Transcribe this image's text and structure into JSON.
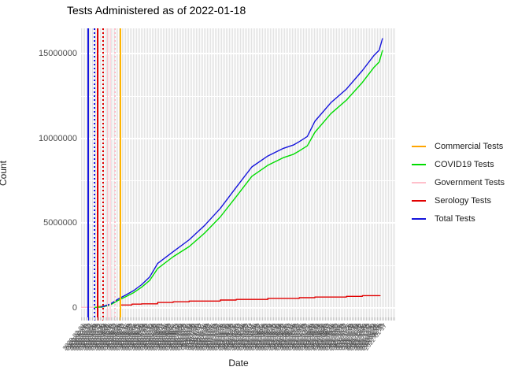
{
  "title": "Tests Administered as of 2022-01-18",
  "y_axis": {
    "label": "Count",
    "ticks": [
      "0",
      "5000000",
      "10000000",
      "15000000"
    ]
  },
  "x_axis": {
    "label": "Date",
    "start": "2020-02-01",
    "end": "2022-01-18",
    "label_every_days": 4,
    "label_format": "YYYY-MM-DD",
    "label_angle_deg": 52
  },
  "legend": {
    "position": "right",
    "items": [
      {
        "label": "Commercial Tests",
        "color": "#FFA500"
      },
      {
        "label": "COVID19 Tests",
        "color": "#00DC00"
      },
      {
        "label": "Government Tests",
        "color": "#FFC0CB"
      },
      {
        "label": "Serology Tests",
        "color": "#E10000"
      },
      {
        "label": "Total Tests",
        "color": "#1414DC"
      }
    ]
  },
  "chart_data": {
    "type": "line",
    "title": "Tests Administered as of 2022-01-18",
    "xlabel": "Date",
    "ylabel": "Count",
    "x_range": [
      "2020-02-01",
      "2022-01-18"
    ],
    "ylim": [
      0,
      16500000
    ],
    "y_major_ticks": [
      0,
      5000000,
      10000000,
      15000000
    ],
    "y_minor_ticks": [
      2500000,
      7500000,
      12500000
    ],
    "grid": "dense daily vertical gridlines, white horizontal gridlines",
    "legend_position": "right",
    "series": [
      {
        "name": "Government Tests",
        "color": "#FFC0CB",
        "points": [
          [
            "2020-02-01",
            10000
          ],
          [
            "2020-03-28",
            20000
          ]
        ]
      },
      {
        "name": "Commercial Tests",
        "color": "#FFA500",
        "points": [
          [
            "2020-03-10",
            50000
          ],
          [
            "2020-03-22",
            80000
          ],
          [
            "2020-04-05",
            130000
          ],
          [
            "2020-04-12",
            150000
          ]
        ]
      },
      {
        "name": "Serology Tests",
        "color": "#E10000",
        "step": true,
        "points": [
          [
            "2020-05-05",
            150000
          ],
          [
            "2020-06-01",
            200000
          ],
          [
            "2020-06-24",
            220000
          ],
          [
            "2020-08-01",
            300000
          ],
          [
            "2020-09-07",
            340000
          ],
          [
            "2020-10-15",
            380000
          ],
          [
            "2020-12-28",
            440000
          ],
          [
            "2021-02-04",
            480000
          ],
          [
            "2021-04-20",
            540000
          ],
          [
            "2021-07-04",
            580000
          ],
          [
            "2021-08-10",
            620000
          ],
          [
            "2021-10-24",
            660000
          ],
          [
            "2021-12-01",
            700000
          ],
          [
            "2022-01-12",
            720000
          ]
        ]
      },
      {
        "name": "COVID19 Tests",
        "color": "#00DC00",
        "points": [
          [
            "2020-03-04",
            10000
          ],
          [
            "2020-03-22",
            30000
          ],
          [
            "2020-04-10",
            150000
          ],
          [
            "2020-04-29",
            420000
          ],
          [
            "2020-05-18",
            650000
          ],
          [
            "2020-06-05",
            880000
          ],
          [
            "2020-06-24",
            1200000
          ],
          [
            "2020-07-13",
            1600000
          ],
          [
            "2020-08-01",
            2300000
          ],
          [
            "2020-09-07",
            3000000
          ],
          [
            "2020-10-15",
            3600000
          ],
          [
            "2020-11-21",
            4400000
          ],
          [
            "2020-12-28",
            5350000
          ],
          [
            "2021-02-04",
            6550000
          ],
          [
            "2021-03-13",
            7750000
          ],
          [
            "2021-04-20",
            8400000
          ],
          [
            "2021-05-27",
            8850000
          ],
          [
            "2021-06-20",
            9050000
          ],
          [
            "2021-07-04",
            9250000
          ],
          [
            "2021-07-23",
            9550000
          ],
          [
            "2021-08-10",
            10350000
          ],
          [
            "2021-09-17",
            11450000
          ],
          [
            "2021-10-24",
            12250000
          ],
          [
            "2021-12-01",
            13300000
          ],
          [
            "2021-12-29",
            14200000
          ],
          [
            "2022-01-10",
            14500000
          ],
          [
            "2022-01-18",
            15200000
          ]
        ]
      },
      {
        "name": "Total Tests",
        "color": "#1414DC",
        "points": [
          [
            "2020-03-18",
            30000
          ],
          [
            "2020-03-22",
            50000
          ],
          [
            "2020-04-10",
            200000
          ],
          [
            "2020-04-29",
            500000
          ],
          [
            "2020-05-18",
            750000
          ],
          [
            "2020-06-05",
            1000000
          ],
          [
            "2020-06-24",
            1350000
          ],
          [
            "2020-07-13",
            1800000
          ],
          [
            "2020-08-01",
            2600000
          ],
          [
            "2020-09-07",
            3300000
          ],
          [
            "2020-10-15",
            4000000
          ],
          [
            "2020-11-21",
            4850000
          ],
          [
            "2020-12-28",
            5850000
          ],
          [
            "2021-02-04",
            7100000
          ],
          [
            "2021-03-13",
            8300000
          ],
          [
            "2021-04-20",
            8950000
          ],
          [
            "2021-05-27",
            9400000
          ],
          [
            "2021-06-20",
            9600000
          ],
          [
            "2021-07-04",
            9800000
          ],
          [
            "2021-07-23",
            10100000
          ],
          [
            "2021-08-10",
            11000000
          ],
          [
            "2021-09-17",
            12100000
          ],
          [
            "2021-10-24",
            12900000
          ],
          [
            "2021-12-01",
            14000000
          ],
          [
            "2021-12-29",
            14900000
          ],
          [
            "2022-01-10",
            15200000
          ],
          [
            "2022-01-18",
            15900000
          ]
        ]
      }
    ],
    "vlines": [
      {
        "date": "2020-02-17",
        "color": "#1414DC",
        "style": "solid",
        "width": 2
      },
      {
        "date": "2020-03-03",
        "color": "#1414DC",
        "style": "dotted",
        "width": 2
      },
      {
        "date": "2020-03-11",
        "color": "#E10000",
        "style": "solid",
        "width": 2
      },
      {
        "date": "2020-03-24",
        "color": "#E10000",
        "style": "dotted",
        "width": 2
      },
      {
        "date": "2020-04-04",
        "color": "#FFC0CB",
        "style": "solid",
        "width": 1.5
      },
      {
        "date": "2020-04-10",
        "color": "#FFD9E0",
        "style": "solid",
        "width": 1.5
      },
      {
        "date": "2020-04-21",
        "color": "#FFC0CB",
        "style": "dotted",
        "width": 2
      },
      {
        "date": "2020-05-05",
        "color": "#FFB400",
        "style": "solid",
        "width": 2
      }
    ]
  }
}
